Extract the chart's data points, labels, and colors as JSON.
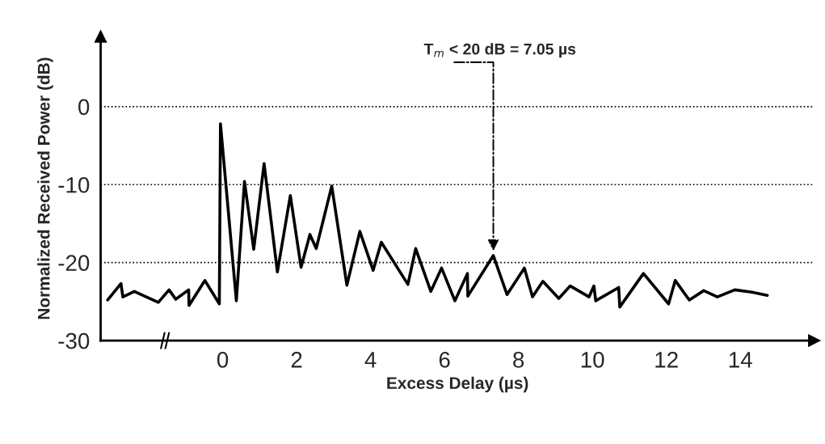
{
  "chart_data": {
    "type": "line",
    "xlabel": "Excess Delay (µs)",
    "ylabel": "Normalized Received Power (dB)",
    "annotations": [
      {
        "text": "T$_{m}$ < 20 dB = 7.05 µs",
        "x": 7.32,
        "y": -19.1
      }
    ],
    "x": [
      -3.11,
      -2.75,
      -2.7,
      -2.39,
      -1.74,
      -1.45,
      -1.27,
      -0.92,
      -0.91,
      -0.48,
      -0.09,
      -0.06,
      0.37,
      0.59,
      0.84,
      1.12,
      1.48,
      1.83,
      2.12,
      2.36,
      2.53,
      2.95,
      3.36,
      3.71,
      4.07,
      4.29,
      5.01,
      5.22,
      5.63,
      5.92,
      6.28,
      6.62,
      6.63,
      7.32,
      7.69,
      8.16,
      8.38,
      8.66,
      9.09,
      9.4,
      9.91,
      10.04,
      10.09,
      10.71,
      10.74,
      11.38,
      12.06,
      12.24,
      12.62,
      13.01,
      13.38,
      13.85,
      14.31,
      14.73
    ],
    "series": [
      {
        "color": "#000000",
        "values": [
          -24.8,
          -22.7,
          -24.4,
          -23.7,
          -25.1,
          -23.5,
          -24.7,
          -23.5,
          -25.5,
          -22.3,
          -25.3,
          -2.2,
          -24.9,
          -9.6,
          -18.3,
          -7.3,
          -21.2,
          -11.4,
          -20.6,
          -16.4,
          -18.2,
          -10.2,
          -22.9,
          -16.0,
          -21.0,
          -17.4,
          -22.8,
          -18.2,
          -23.7,
          -20.7,
          -24.9,
          -21.4,
          -24.3,
          -19.1,
          -24.1,
          -20.7,
          -24.4,
          -22.4,
          -24.6,
          -23.0,
          -24.4,
          -23.0,
          -24.9,
          -23.2,
          -25.7,
          -21.4,
          -25.3,
          -22.3,
          -24.8,
          -23.6,
          -24.4,
          -23.5,
          -23.8,
          -24.2
        ]
      }
    ],
    "xlim": [
      -3.3,
      16.0
    ],
    "ylim": [
      -30,
      9
    ],
    "xticks": [
      0,
      2,
      4,
      6,
      8,
      10,
      12,
      14
    ],
    "yticks": [
      0,
      -10,
      -20,
      -30
    ],
    "grid": "y",
    "line_style": "solid"
  }
}
